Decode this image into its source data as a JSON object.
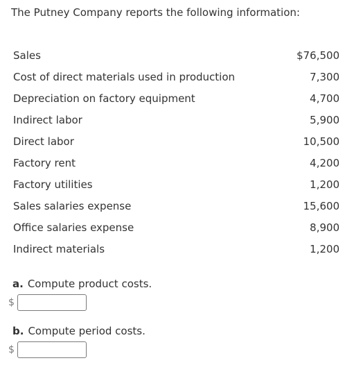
{
  "intro": "The Putney Company reports the following information:",
  "items": [
    {
      "label": "Sales",
      "amount": "$76,500"
    },
    {
      "label": "Cost of direct materials used in production",
      "amount": "7,300"
    },
    {
      "label": "Depreciation on factory equipment",
      "amount": "4,700"
    },
    {
      "label": "Indirect labor",
      "amount": "5,900"
    },
    {
      "label": "Direct labor",
      "amount": "10,500"
    },
    {
      "label": "Factory rent",
      "amount": "4,200"
    },
    {
      "label": "Factory utilities",
      "amount": "1,200"
    },
    {
      "label": "Sales salaries expense",
      "amount": "15,600"
    },
    {
      "label": "Office salaries expense",
      "amount": "8,900"
    },
    {
      "label": "Indirect materials",
      "amount": "1,200"
    }
  ],
  "questions": [
    {
      "letter": "a.",
      "text": "Compute product costs.",
      "currency": "$",
      "value": ""
    },
    {
      "letter": "b.",
      "text": "Compute period costs.",
      "currency": "$",
      "value": ""
    }
  ]
}
